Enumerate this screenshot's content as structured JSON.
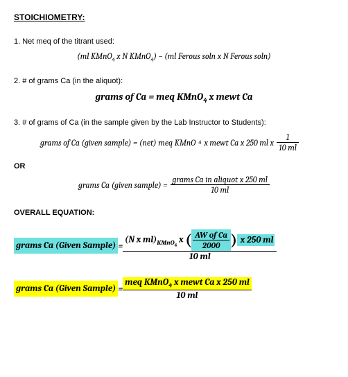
{
  "heading": "STOICHIOMETRY:",
  "item1": "1. Net meq of the titrant used:",
  "f1_a": "(ml KMnO",
  "f1_b": " x N KMnO",
  "f1_c": ") − (ml Ferous soln x N Ferous soln)",
  "item2": "2.  # of grams Ca (in the aliquot):",
  "f2_a": "grams of Ca = meq KMnO",
  "f2_b": " x mewt Ca",
  "item3": "3.  # of grams of Ca (in the sample given by the Lab Instructor to Students):",
  "f3_a": "grams of Ca (given sample) = (net) meq KMnO",
  "f3_b": " x mewt Ca x 250 ml x ",
  "f3_num": "1",
  "f3_den": "10 ml",
  "or": "OR",
  "f4_l": "grams Ca (given sample) = ",
  "f4_num": "grams Ca in aliquot x 250 ml",
  "f4_den": "10 ml",
  "overall": "OVERALL EQUATION:",
  "eq1_lhs": "grams Ca (Given Sample)",
  "eq_eq": " = ",
  "eq1_num_a": "(N x ml)",
  "eq1_num_sub": "KMnO",
  "eq1_num_b": " x ",
  "eq1_inner_num": "AW of Ca",
  "eq1_inner_den": "2000",
  "eq1_num_c": "  x 250 ml",
  "eq1_den": "10 ml",
  "eq2_lhs": "grams Ca (Given Sample)",
  "eq2_num_a": "meq KMnO",
  "eq2_num_b": " x mewt Ca x 250 ml",
  "eq2_den": "10 ml",
  "four": "4",
  "colors": {
    "cyan": "#6ee0e0",
    "yellow": "#ffff00"
  }
}
